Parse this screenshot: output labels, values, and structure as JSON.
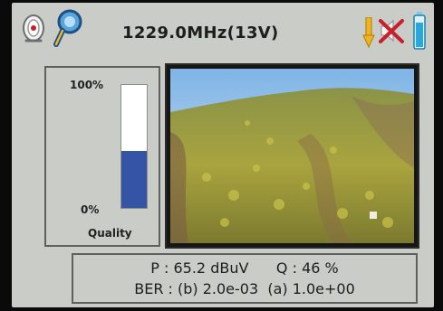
{
  "header": {
    "frequency": "1229.0MHz(13V)",
    "icons": [
      "lnb-dish-icon",
      "satellite-search-icon",
      "lnb-voltage-icon",
      "speaker-muted-icon",
      "battery-icon"
    ]
  },
  "quality_panel": {
    "max_label": "100%",
    "min_label": "0%",
    "title": "Quality",
    "level": 0.46,
    "bar_color": "#3654a6"
  },
  "video_preview": {
    "scene": "video-preview"
  },
  "measurements": {
    "line1": "P : 65.2 dBuV      Q : 46 %",
    "line2": "BER : (b) 2.0e-03  (a) 1.0e+00"
  },
  "colors": {
    "background": "#c9ccc7",
    "accent_yellow": "#f2b321",
    "muted_red": "#c8202a",
    "battery_cyan": "#28a6de"
  }
}
